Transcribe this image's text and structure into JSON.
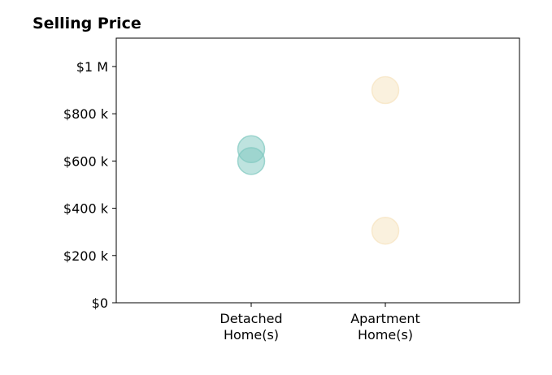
{
  "chart_data": {
    "type": "scatter",
    "title": "Selling Price",
    "xlabel": "",
    "ylabel": "",
    "categories": [
      [
        "Detached",
        "Home(s)"
      ],
      [
        "Apartment",
        "Home(s)"
      ]
    ],
    "ylim": [
      0,
      1120000
    ],
    "yticks": [
      {
        "value": 0,
        "label": "$0"
      },
      {
        "value": 200000,
        "label": "$200 k"
      },
      {
        "value": 400000,
        "label": "$400 k"
      },
      {
        "value": 600000,
        "label": "$600 k"
      },
      {
        "value": 800000,
        "label": "$800 k"
      },
      {
        "value": 1000000,
        "label": "$1 M"
      }
    ],
    "grid": false,
    "legend": "none",
    "series": [
      {
        "color": "#7ec8bf",
        "points": [
          {
            "category": 0,
            "y": 650000
          },
          {
            "category": 0,
            "y": 600000
          }
        ]
      },
      {
        "color": "#f6e3bd",
        "points": [
          {
            "category": 1,
            "y": 900000
          },
          {
            "category": 1,
            "y": 305000
          }
        ]
      }
    ]
  }
}
